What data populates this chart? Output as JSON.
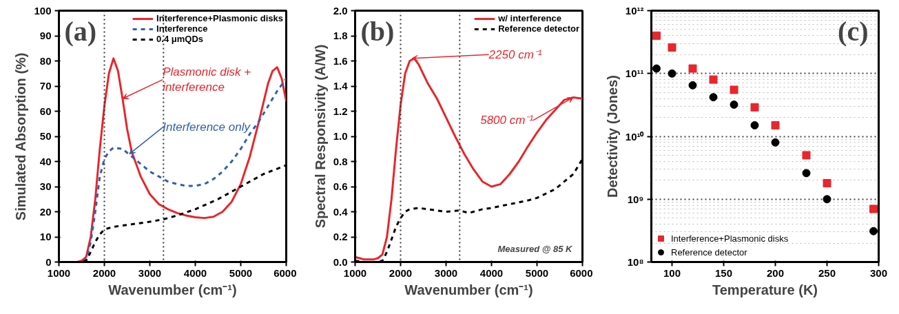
{
  "chart_data": [
    {
      "type": "line",
      "xlabel": "Wavenumber (cm⁻¹)",
      "ylabel": "Simulated Absorption (%)",
      "xlim": [
        1000,
        6000
      ],
      "ylim": [
        0,
        100
      ],
      "xticks": [
        1000,
        2000,
        3000,
        4000,
        5000,
        6000
      ],
      "yticks": [
        0,
        10,
        20,
        30,
        40,
        50,
        60,
        70,
        80,
        90,
        100
      ],
      "grid": false,
      "legend": "top",
      "marker": "none",
      "series": [
        {
          "name": "Interference+Plasmonic disks",
          "color": "#e8262b",
          "line_style": "solid",
          "x": [
            1000,
            1400,
            1500,
            1600,
            1700,
            1800,
            1900,
            2000,
            2100,
            2200,
            2300,
            2400,
            2500,
            2600,
            2800,
            3000,
            3200,
            3400,
            3600,
            3800,
            4000,
            4200,
            4400,
            4600,
            4800,
            5000,
            5200,
            5400,
            5600,
            5700,
            5800,
            5900,
            6000
          ],
          "values": [
            0,
            0,
            0.5,
            2,
            10,
            25,
            45,
            62,
            75,
            81,
            76,
            65,
            53,
            44,
            34,
            27,
            23,
            21,
            19.5,
            18.5,
            17.8,
            17.5,
            18,
            20,
            24,
            31,
            42,
            56,
            71,
            76,
            77.5,
            73,
            64
          ]
        },
        {
          "name": "Interference",
          "color": "#2f5fb3",
          "line_style": "dashed",
          "x": [
            1000,
            1500,
            1600,
            1700,
            1800,
            1900,
            2000,
            2100,
            2200,
            2400,
            2600,
            2800,
            3000,
            3200,
            3400,
            3600,
            3800,
            4000,
            4200,
            4400,
            4600,
            4800,
            5000,
            5200,
            5400,
            5600,
            5800,
            6000
          ],
          "values": [
            0,
            0,
            1,
            8,
            20,
            34,
            41,
            44,
            45.5,
            45,
            42,
            39,
            36,
            34,
            32,
            31,
            30.3,
            30.3,
            31,
            33,
            36,
            40,
            45,
            51,
            56,
            62,
            68,
            73
          ]
        },
        {
          "name": "0.4 μmQDs",
          "color": "#000000",
          "line_style": "dashed",
          "x": [
            1000,
            1500,
            1600,
            1700,
            1800,
            1900,
            2000,
            2200,
            2600,
            3000,
            3300,
            3600,
            4000,
            4500,
            5000,
            5500,
            6000
          ],
          "values": [
            0,
            0,
            0.5,
            4,
            8,
            11,
            13,
            14,
            15,
            16,
            17,
            18.5,
            21,
            25,
            30,
            35,
            38.5
          ]
        }
      ],
      "ref_lines": [
        {
          "axis": "x",
          "value": 2000,
          "color": "#333333",
          "line_style": "dotted"
        },
        {
          "axis": "x",
          "value": 3300,
          "color": "#333333",
          "line_style": "dotted"
        }
      ],
      "annotations": [
        "(a)",
        {
          "text": "Plasmonic disk +\ninterference",
          "x": 2400,
          "y": 65
        },
        {
          "text": "Interference only",
          "x": 2550,
          "y": 43
        }
      ]
    },
    {
      "type": "line",
      "xlabel": "Wavenumber (cm⁻¹)",
      "ylabel": "Spectral Responsivity (A/W)",
      "xlim": [
        1000,
        6000
      ],
      "ylim": [
        0,
        2
      ],
      "xticks": [
        1000,
        2000,
        3000,
        4000,
        5000,
        6000
      ],
      "yticks": [
        {
          "value": 0,
          "label": "0.0"
        },
        0.2,
        0.4,
        0.6,
        0.8,
        {
          "value": 1,
          "label": "1.0"
        },
        1.2,
        1.4,
        1.6,
        1.8,
        {
          "value": 2,
          "label": "2.0"
        }
      ],
      "grid": false,
      "legend": "top",
      "marker": "none",
      "series": [
        {
          "name": "w/ interference",
          "color": "#e8262b",
          "line_style": "solid",
          "x": [
            1000,
            1100,
            1200,
            1400,
            1500,
            1600,
            1700,
            1800,
            1900,
            2000,
            2100,
            2200,
            2300,
            2400,
            2600,
            2800,
            3000,
            3200,
            3400,
            3600,
            3800,
            4000,
            4200,
            4400,
            4600,
            4800,
            5000,
            5200,
            5400,
            5600,
            5800,
            6000
          ],
          "values": [
            0.04,
            0.03,
            0.02,
            0.02,
            0.03,
            0.06,
            0.2,
            0.5,
            0.9,
            1.25,
            1.5,
            1.6,
            1.62,
            1.57,
            1.42,
            1.3,
            1.15,
            1.0,
            0.86,
            0.74,
            0.64,
            0.6,
            0.62,
            0.7,
            0.8,
            0.92,
            1.03,
            1.13,
            1.21,
            1.29,
            1.31,
            1.3
          ]
        },
        {
          "name": "Reference detector",
          "color": "#000000",
          "line_style": "dashed",
          "x": [
            1000,
            1200,
            1500,
            1600,
            1700,
            1800,
            1900,
            2000,
            2100,
            2200,
            2400,
            2600,
            2800,
            3000,
            3300,
            3500,
            3800,
            4000,
            4400,
            4800,
            5000,
            5400,
            5800,
            6000
          ],
          "values": [
            0.01,
            0,
            0,
            0.01,
            0.08,
            0.18,
            0.28,
            0.35,
            0.4,
            0.42,
            0.43,
            0.42,
            0.41,
            0.4,
            0.41,
            0.39,
            0.42,
            0.43,
            0.46,
            0.49,
            0.51,
            0.58,
            0.7,
            0.82
          ]
        }
      ],
      "ref_lines": [
        {
          "axis": "x",
          "value": 2000,
          "color": "#333333",
          "line_style": "dotted"
        },
        {
          "axis": "x",
          "value": 3300,
          "color": "#333333",
          "line_style": "dotted"
        }
      ],
      "annotations": [
        "(b)",
        {
          "text": "2250 cm⁻¹",
          "x": 2250,
          "y": 1.62
        },
        {
          "text": "5800 cm⁻¹",
          "x": 5800,
          "y": 1.31
        },
        "Measured @ 85 K"
      ]
    },
    {
      "type": "scatter",
      "xlabel": "Temperature (K)",
      "ylabel": "Detectivity (Jones)",
      "log": "y",
      "xlim": [
        80,
        300
      ],
      "ylim": [
        100000000.0,
        1000000000000.0
      ],
      "xticks": [
        100,
        150,
        200,
        250,
        300
      ],
      "yticks": [
        {
          "value": 100000000.0,
          "label": "10⁸"
        },
        {
          "value": 1000000000.0,
          "label": "10⁹"
        },
        {
          "value": 10000000000.0,
          "label": "10¹⁰"
        },
        {
          "value": 100000000000.0,
          "label": "10¹¹"
        },
        {
          "value": 1000000000000.0,
          "label": "10¹²"
        }
      ],
      "grid": "y",
      "legend": "bottom left",
      "series": [
        {
          "name": "Interference+Plasmonic disks",
          "color": "#e8262b",
          "marker": "square",
          "x": [
            85,
            100,
            120,
            140,
            160,
            180,
            200,
            230,
            250,
            295
          ],
          "values": [
            400000000000.0,
            260000000000.0,
            120000000000.0,
            80000000000.0,
            55000000000.0,
            29000000000.0,
            15000000000.0,
            5000000000.0,
            1800000000.0,
            700000000.0
          ]
        },
        {
          "name": "Reference detector",
          "color": "#000000",
          "marker": "circle",
          "x": [
            85,
            100,
            120,
            140,
            160,
            180,
            200,
            230,
            250,
            295
          ],
          "values": [
            120000000000.0,
            100000000000.0,
            65000000000.0,
            42000000000.0,
            32000000000.0,
            15000000000.0,
            8000000000.0,
            2600000000.0,
            1000000000.0,
            310000000.0
          ]
        }
      ],
      "annotations": [
        "(c)"
      ]
    }
  ]
}
